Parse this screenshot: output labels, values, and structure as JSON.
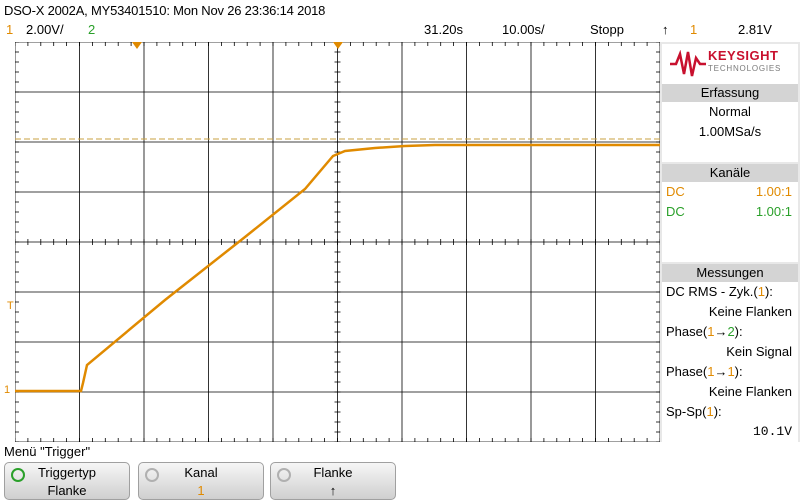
{
  "header": {
    "title": "DSO-X 2002A, MY53401510: Mon Nov 26 23:36:14 2018"
  },
  "status": {
    "ch1_num": "1",
    "ch1_scale": "2.00V/",
    "ch2_num": "2",
    "time_offset": "31.20s",
    "time_scale": "10.00s/",
    "run_state": "Stopp",
    "trigger_edge_icon": "rising-edge-icon",
    "trigger_edge_glyph": "↑",
    "trigger_source": "1",
    "trigger_level": "2.81V"
  },
  "logo": {
    "brand": "KEYSIGHT",
    "sub": "TECHNOLOGIES"
  },
  "acquisition": {
    "heading": "Erfassung",
    "mode": "Normal",
    "rate": "1.00MSa/s"
  },
  "channels": {
    "heading": "Kanäle",
    "items": [
      {
        "coupling": "DC",
        "probe": "1.00:1",
        "color": "#e08a00"
      },
      {
        "coupling": "DC",
        "probe": "1.00:1",
        "color": "#2aa02a"
      }
    ]
  },
  "measurements": {
    "heading": "Messungen",
    "m1_label": "DC RMS - Zyk.(",
    "m1_ch": "1",
    "m1_close": "):",
    "m1_value": "Keine Flanken",
    "m2_label": "Phase(",
    "m2_ch_a": "1",
    "m2_arrow": "→",
    "m2_ch_b": "2",
    "m2_close": "):",
    "m2_value": "Kein Signal",
    "m3_label": "Phase(",
    "m3_ch_a": "1",
    "m3_arrow": "→",
    "m3_ch_b": "1",
    "m3_close": "):",
    "m3_value": "Keine Flanken",
    "m4_label": "Sp-Sp(",
    "m4_ch": "1",
    "m4_close": "):",
    "m4_value": "10.1V"
  },
  "menu": {
    "label": "Menü \"Trigger\""
  },
  "softkeys": [
    {
      "label": "Triggertyp",
      "value": "Flanke"
    },
    {
      "label": "Kanal",
      "value": "1"
    },
    {
      "label": "Flanke",
      "value": "↑"
    }
  ],
  "scope_markers": {
    "ch1_ground": "1",
    "trigger_marker": "T"
  },
  "colors": {
    "ch1": "#e08a00",
    "ch2": "#2aa02a",
    "grid": "#000000",
    "trigger_level_line": "#c8a040"
  }
}
